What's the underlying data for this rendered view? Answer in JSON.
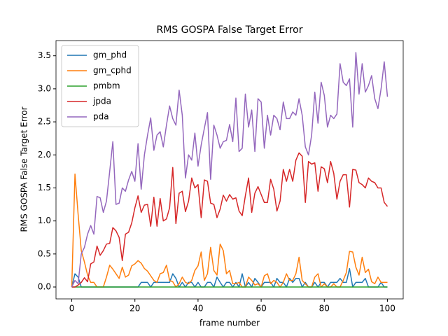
{
  "chart_data": {
    "type": "line",
    "title": "RMS GOSPA False Target Error",
    "xlabel": "frame number",
    "ylabel": "RMS GOSPA False Target Error",
    "xlim": [
      -5,
      105
    ],
    "ylim": [
      -0.18,
      3.73
    ],
    "xticks": [
      0,
      20,
      40,
      60,
      80,
      100
    ],
    "yticks": [
      {
        "value": 0,
        "label": "0.0"
      },
      {
        "value": 0.5,
        "label": "0.5"
      },
      {
        "value": 1,
        "label": "1.0"
      },
      {
        "value": 1.5,
        "label": "1.5"
      },
      {
        "value": 2,
        "label": "2.0"
      },
      {
        "value": 2.5,
        "label": "2.5"
      },
      {
        "value": 3,
        "label": "3.0"
      },
      {
        "value": 3.5,
        "label": "3.5"
      }
    ],
    "legend": "upper left",
    "x": [
      0,
      1,
      2,
      3,
      4,
      5,
      6,
      7,
      8,
      9,
      10,
      11,
      12,
      13,
      14,
      15,
      16,
      17,
      18,
      19,
      20,
      21,
      22,
      23,
      24,
      25,
      26,
      27,
      28,
      29,
      30,
      31,
      32,
      33,
      34,
      35,
      36,
      37,
      38,
      39,
      40,
      41,
      42,
      43,
      44,
      45,
      46,
      47,
      48,
      49,
      50,
      51,
      52,
      53,
      54,
      55,
      56,
      57,
      58,
      59,
      60,
      61,
      62,
      63,
      64,
      65,
      66,
      67,
      68,
      69,
      70,
      71,
      72,
      73,
      74,
      75,
      76,
      77,
      78,
      79,
      80,
      81,
      82,
      83,
      84,
      85,
      86,
      87,
      88,
      89,
      90,
      91,
      92,
      93,
      94,
      95,
      96,
      97,
      98,
      99,
      100
    ],
    "series": [
      {
        "name": "gm_phd",
        "color": "#1f77b4",
        "values": [
          0,
          0.2,
          0.15,
          0,
          0,
          0,
          0,
          0,
          0,
          0,
          0,
          0,
          0,
          0,
          0,
          0,
          0,
          0,
          0,
          0,
          0,
          0,
          0.07,
          0.07,
          0.07,
          0,
          0.07,
          0.07,
          0.07,
          0.07,
          0.07,
          0.07,
          0.2,
          0.13,
          0,
          0.07,
          0,
          0.07,
          0.07,
          0,
          0.07,
          0,
          0,
          0.07,
          0.07,
          0,
          0.15,
          0.07,
          0,
          0.07,
          0.07,
          0,
          0.07,
          0,
          0.2,
          0,
          0.07,
          0,
          0.13,
          0.07,
          0,
          0.07,
          0.07,
          0.07,
          0,
          0.13,
          0.07,
          0.07,
          0,
          0.13,
          0.07,
          0.13,
          0.13,
          0,
          0.07,
          0,
          0,
          0.07,
          0,
          0.07,
          0.07,
          0,
          0.07,
          0.07,
          0.07,
          0.13,
          0.07,
          0.07,
          0.28,
          0,
          0.07,
          0.07,
          0.07,
          0.13,
          0,
          0,
          0,
          0,
          0.07,
          0,
          0
        ]
      },
      {
        "name": "gm_cphd",
        "color": "#ff7f0e",
        "values": [
          0,
          1.71,
          1.1,
          0.55,
          0.38,
          0.18,
          0.07,
          0.07,
          0,
          0,
          0,
          0.15,
          0.33,
          0.27,
          0.2,
          0.13,
          0.3,
          0.15,
          0.18,
          0.32,
          0.35,
          0.4,
          0.36,
          0.28,
          0.24,
          0.17,
          0.1,
          0.07,
          0.2,
          0.22,
          0.33,
          0.1,
          0.08,
          0,
          0.05,
          0.15,
          0.07,
          0.05,
          0.1,
          0.25,
          0.32,
          0.53,
          0.1,
          0.2,
          0.6,
          0.25,
          0.18,
          0.65,
          0.55,
          0.2,
          0.25,
          0.05,
          0.05,
          0.07,
          0,
          0,
          0.15,
          0.1,
          0.03,
          0.05,
          0,
          0.17,
          0.2,
          0.05,
          0.1,
          0.07,
          0,
          0.07,
          0.2,
          0.1,
          0.1,
          0.2,
          0.45,
          0.1,
          0.05,
          0,
          0,
          0.15,
          0.2,
          0,
          0.05,
          0,
          0,
          0.05,
          0,
          0,
          0.1,
          0.22,
          0.54,
          0.53,
          0.3,
          0.18,
          0.45,
          0.22,
          0.27,
          0.08,
          0.05,
          0.15,
          0.07,
          0.07,
          0.07
        ]
      },
      {
        "name": "pmbm",
        "color": "#2ca02c",
        "values": [
          0,
          0,
          0,
          0,
          0,
          0,
          0,
          0,
          0,
          0,
          0,
          0,
          0,
          0,
          0,
          0,
          0,
          0,
          0,
          0,
          0,
          0,
          0,
          0,
          0,
          0,
          0,
          0,
          0,
          0,
          0,
          0,
          0,
          0,
          0,
          0,
          0,
          0,
          0,
          0,
          0,
          0,
          0,
          0,
          0,
          0,
          0,
          0,
          0,
          0,
          0,
          0,
          0,
          0,
          0,
          0,
          0,
          0,
          0,
          0,
          0,
          0,
          0,
          0,
          0,
          0,
          0,
          0,
          0,
          0,
          0,
          0,
          0,
          0,
          0,
          0,
          0,
          0,
          0,
          0,
          0,
          0,
          0,
          0,
          0,
          0,
          0,
          0,
          0,
          0,
          0,
          0,
          0,
          0,
          0,
          0,
          0,
          0,
          0,
          0,
          0
        ]
      },
      {
        "name": "jpda",
        "color": "#d62728",
        "values": [
          0,
          0,
          0.03,
          0.07,
          0.14,
          0.08,
          0.35,
          0.38,
          0.62,
          0.48,
          0.55,
          0.65,
          0.66,
          0.9,
          0.85,
          0.75,
          0.4,
          0.8,
          0.83,
          0.97,
          1.2,
          1.38,
          1.13,
          1.24,
          1.25,
          0.92,
          1.36,
          0.92,
          1.34,
          1.0,
          1.03,
          1.2,
          1.81,
          0.96,
          1.42,
          1.45,
          1.14,
          1.3,
          1.65,
          1.5,
          1.55,
          1.05,
          1.62,
          1.6,
          1.27,
          1.25,
          1.05,
          1.18,
          1.39,
          1.3,
          1.4,
          1.33,
          1.35,
          1.15,
          1.08,
          1.38,
          1.65,
          1.13,
          1.42,
          1.52,
          1.4,
          1.28,
          1.28,
          1.63,
          1.48,
          1.15,
          1.3,
          1.78,
          1.6,
          1.78,
          1.6,
          1.92,
          2.03,
          1.98,
          1.28,
          1.9,
          1.86,
          1.88,
          1.45,
          1.82,
          1.79,
          1.58,
          1.9,
          1.72,
          1.33,
          1.6,
          1.7,
          1.7,
          1.21,
          1.78,
          1.77,
          1.58,
          1.55,
          1.5,
          1.65,
          1.6,
          1.58,
          1.5,
          1.5,
          1.28,
          1.22
        ]
      },
      {
        "name": "pda",
        "color": "#9467bd",
        "values": [
          0,
          0.1,
          0.05,
          0.5,
          0.6,
          0.8,
          0.93,
          0.8,
          1.37,
          1.35,
          1.13,
          1.3,
          1.75,
          2.2,
          1.25,
          1.27,
          1.5,
          1.45,
          1.62,
          1.75,
          1.6,
          2.17,
          1.48,
          2.0,
          2.3,
          2.56,
          2.07,
          2.3,
          2.35,
          2.12,
          2.45,
          2.74,
          2.55,
          2.45,
          2.98,
          2.6,
          1.65,
          2.0,
          1.92,
          2.33,
          1.83,
          2.15,
          2.4,
          2.64,
          1.63,
          2.45,
          2.3,
          2.1,
          2.2,
          2.22,
          2.46,
          2.2,
          2.86,
          2.05,
          2.1,
          2.92,
          2.42,
          2.68,
          2.05,
          2.85,
          2.8,
          2.1,
          2.6,
          2.3,
          2.6,
          2.55,
          2.38,
          2.8,
          2.55,
          2.55,
          2.65,
          2.6,
          2.85,
          2.6,
          2.12,
          2.0,
          2.3,
          2.95,
          2.48,
          3.1,
          2.9,
          2.42,
          2.6,
          2.55,
          2.62,
          3.38,
          3.1,
          3.05,
          3.15,
          2.42,
          3.55,
          2.92,
          3.38,
          2.95,
          3.05,
          3.2,
          2.85,
          2.7,
          3.0,
          3.41,
          2.88
        ]
      }
    ]
  }
}
